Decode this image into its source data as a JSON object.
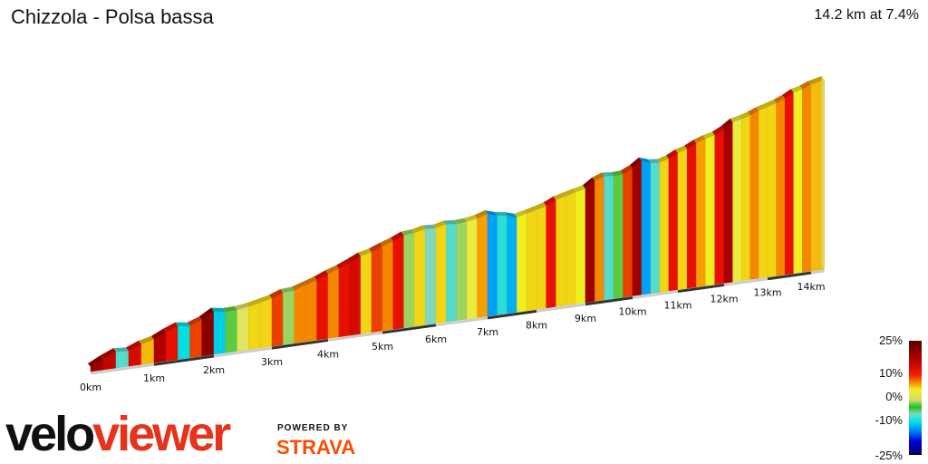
{
  "title": "Chizzola - Polsa bassa",
  "summary": "14.2 km at 7.4%",
  "chart_data": {
    "type": "area",
    "title": "Chizzola - Polsa bassa",
    "xlabel": "",
    "ylabel": "",
    "x_unit": "km",
    "distance_km": 14.2,
    "average_gradient_pct": 7.4,
    "segment_length_km": 0.2,
    "x_ticks": [
      "0km",
      "1km",
      "2km",
      "3km",
      "4km",
      "5km",
      "6km",
      "7km",
      "8km",
      "9km",
      "10km",
      "11km",
      "12km",
      "13km",
      "14km"
    ],
    "gradients_pct": [
      18,
      15,
      -3,
      14,
      8,
      16,
      13,
      -5,
      12,
      20,
      -6,
      1,
      4,
      7,
      7,
      12,
      2,
      10,
      10,
      13,
      10,
      13,
      14,
      7,
      12,
      10,
      13,
      2,
      7,
      -2,
      7,
      -3,
      2,
      5,
      9,
      -9,
      -4,
      -8,
      6,
      7,
      7,
      13,
      7,
      7,
      6,
      18,
      10,
      -3,
      1,
      12,
      18,
      -9,
      -3,
      7,
      13,
      7,
      13,
      9,
      6,
      13,
      17,
      5,
      7,
      10,
      7,
      7,
      10,
      13,
      6,
      10,
      8
    ],
    "color_scale": {
      "labels": [
        "25%",
        "10%",
        "0%",
        "-10%",
        "-25%"
      ],
      "stops": [
        {
          "pct": -25,
          "color": "#000060"
        },
        {
          "pct": -15,
          "color": "#0000e0"
        },
        {
          "pct": -10,
          "color": "#0090ff"
        },
        {
          "pct": -5,
          "color": "#00e0e0"
        },
        {
          "pct": -2,
          "color": "#80d8c0"
        },
        {
          "pct": 0,
          "color": "#20c020"
        },
        {
          "pct": 3,
          "color": "#d8e080"
        },
        {
          "pct": 6,
          "color": "#f0f020"
        },
        {
          "pct": 9,
          "color": "#f5a000"
        },
        {
          "pct": 11,
          "color": "#f07000"
        },
        {
          "pct": 13,
          "color": "#e81000"
        },
        {
          "pct": 16,
          "color": "#b00000"
        },
        {
          "pct": 25,
          "color": "#5a0000"
        }
      ]
    },
    "legend": "right"
  },
  "branding": {
    "logo_part1": "velo",
    "logo_part2": "viewer",
    "powered_by": "POWERED BY",
    "strava": "STRAVA"
  }
}
